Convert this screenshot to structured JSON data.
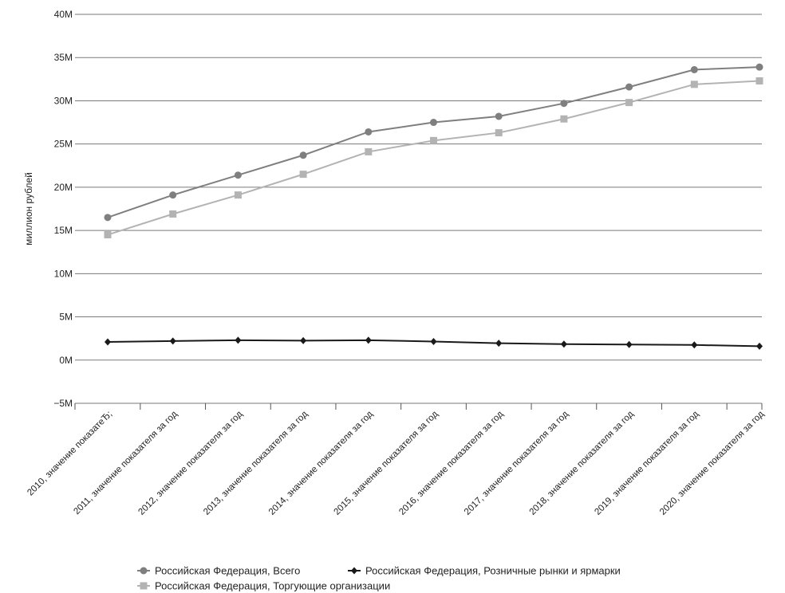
{
  "chart_data": {
    "type": "line",
    "title": "",
    "xlabel": "",
    "ylabel": "миллион рублей",
    "ylim": [
      -5000000,
      40000000
    ],
    "yticks": [
      -5000000,
      0,
      5000000,
      10000000,
      15000000,
      20000000,
      25000000,
      30000000,
      35000000,
      40000000
    ],
    "ytick_labels": [
      "−5M",
      "0M",
      "5M",
      "10M",
      "15M",
      "20M",
      "25M",
      "30M",
      "35M",
      "40M"
    ],
    "grid": true,
    "legend_position": "bottom",
    "categories": [
      "2010, значение показатеЂ;",
      "2011, значение показателя за год",
      "2012, значение показателя за год",
      "2013, значение показателя за год",
      "2014, значение показателя за год",
      "2015, значение показателя за год",
      "2016, значение показателя за год",
      "2017, значение показателя за год",
      "2018, значение показателя за год",
      "2019, значение показателя за год",
      "2020, значение показателя за год"
    ],
    "series": [
      {
        "name": "Российская Федерация, Всего",
        "color": "#7f7f7f",
        "marker": "circle",
        "values": [
          16500000,
          19100000,
          21400000,
          23700000,
          26400000,
          27500000,
          28200000,
          29700000,
          31600000,
          33600000,
          33900000
        ]
      },
      {
        "name": "Российская Федерация, Розничные рынки и ярмарки",
        "color": "#1a1a1a",
        "marker": "diamond",
        "values": [
          2100000,
          2200000,
          2300000,
          2250000,
          2300000,
          2150000,
          1950000,
          1850000,
          1800000,
          1750000,
          1600000
        ]
      },
      {
        "name": "Российская Федерация, Торгующие организации",
        "color": "#b3b3b3",
        "marker": "square",
        "values": [
          14500000,
          16900000,
          19100000,
          21500000,
          24100000,
          25400000,
          26300000,
          27900000,
          29800000,
          31900000,
          32300000
        ]
      }
    ]
  }
}
